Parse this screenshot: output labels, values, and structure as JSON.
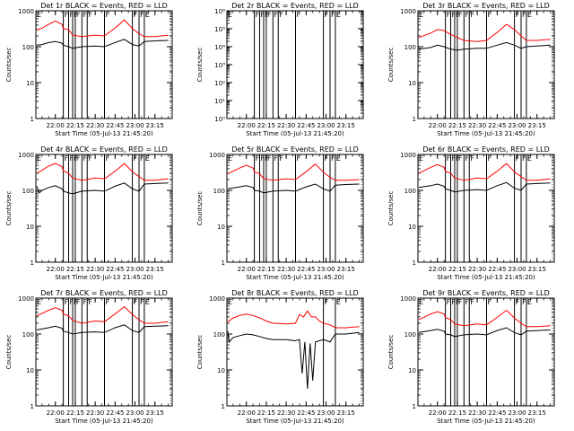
{
  "figure": {
    "xtick_labels": [
      "22:00",
      "22:15",
      "22:30",
      "22:45",
      "23:00",
      "23:15"
    ],
    "ylabel": "Counts/sec",
    "colors": {
      "events": "#000000",
      "lld": "#ff0000",
      "flag": "#000000"
    },
    "flag_letter": "F",
    "end_letter": "E"
  },
  "chart_data": [
    {
      "type": "line",
      "detector": "1r",
      "title": "Det 1r BLACK = Events, RED = LLD",
      "xlabel": "Start Time (05-Jul-13 21:45:20)",
      "ylabel": "Counts/sec",
      "ylog": true,
      "ylim": [
        1,
        1000
      ],
      "ytick_labels": [
        "1",
        "10",
        "100",
        "1000"
      ],
      "xrange": [
        "21:45:20",
        "23:28:00"
      ],
      "flags": [
        "22:06",
        "22:10",
        "22:13",
        "22:15",
        "22:20",
        "22:24",
        "22:37",
        "22:58",
        "23:03",
        "23:07"
      ],
      "end_marker": "23:07",
      "series": [
        {
          "key": "events",
          "x": [
            "21:46",
            "21:50",
            "21:55",
            "22:00",
            "22:05",
            "22:06",
            "22:10",
            "22:13",
            "22:20",
            "22:30",
            "22:37",
            "22:45",
            "22:52",
            "22:58",
            "23:03",
            "23:07",
            "23:15",
            "23:25"
          ],
          "values": [
            110,
            115,
            130,
            140,
            125,
            110,
            100,
            90,
            100,
            105,
            100,
            130,
            160,
            115,
            105,
            140,
            145,
            150
          ]
        },
        {
          "key": "lld",
          "x": [
            "21:46",
            "21:50",
            "21:55",
            "22:00",
            "22:05",
            "22:06",
            "22:10",
            "22:13",
            "22:20",
            "22:30",
            "22:37",
            "22:45",
            "22:52",
            "22:58",
            "23:03",
            "23:07",
            "23:15",
            "23:25"
          ],
          "values": [
            290,
            330,
            420,
            520,
            420,
            320,
            300,
            210,
            190,
            210,
            200,
            330,
            560,
            320,
            230,
            190,
            190,
            210
          ]
        }
      ]
    },
    {
      "type": "line",
      "detector": "2r",
      "title": "Det 2r BLACK = Events, RED = LLD",
      "xlabel": "Start Time (05-Jul-13 21:45:20)",
      "ylabel": "Counts/sec",
      "ylog": true,
      "ylim": [
        1,
        1000000
      ],
      "ytick_labels": [
        "10⁰",
        "10¹",
        "10²",
        "10³",
        "10⁴",
        "10⁵",
        "10⁶"
      ],
      "xrange": [
        "21:45:20",
        "23:28:00"
      ],
      "flags": [
        "22:06",
        "22:10",
        "22:13",
        "22:15",
        "22:20",
        "22:24",
        "22:37",
        "22:58",
        "23:03",
        "23:07"
      ],
      "end_marker": "23:07",
      "series": []
    },
    {
      "type": "line",
      "detector": "3r",
      "title": "Det 3r BLACK = Events, RED = LLD",
      "xlabel": "Start Time (05-Jul-13 21:45:20)",
      "ylabel": "Counts/sec",
      "ylog": true,
      "ylim": [
        1,
        1000
      ],
      "ytick_labels": [
        "1",
        "10",
        "100",
        "1000"
      ],
      "xrange": [
        "21:45:20",
        "23:28:00"
      ],
      "flags": [
        "22:06",
        "22:10",
        "22:13",
        "22:15",
        "22:20",
        "22:24",
        "22:37",
        "22:58",
        "23:03",
        "23:07"
      ],
      "end_marker": "23:07",
      "series": [
        {
          "key": "events",
          "x": [
            "21:46",
            "21:55",
            "22:00",
            "22:05",
            "22:10",
            "22:15",
            "22:20",
            "22:30",
            "22:37",
            "22:45",
            "22:52",
            "22:58",
            "23:03",
            "23:07",
            "23:15",
            "23:25"
          ],
          "values": [
            85,
            95,
            110,
            100,
            85,
            80,
            85,
            90,
            90,
            110,
            130,
            110,
            90,
            100,
            105,
            110
          ]
        },
        {
          "key": "lld",
          "x": [
            "21:46",
            "21:55",
            "22:00",
            "22:05",
            "22:10",
            "22:15",
            "22:20",
            "22:30",
            "22:37",
            "22:45",
            "22:52",
            "22:58",
            "23:03",
            "23:07",
            "23:15",
            "23:25"
          ],
          "values": [
            180,
            240,
            300,
            280,
            220,
            180,
            150,
            140,
            150,
            250,
            420,
            300,
            200,
            150,
            150,
            160
          ]
        }
      ]
    },
    {
      "type": "line",
      "detector": "4r",
      "title": "Det 4r BLACK = Events, RED = LLD",
      "xlabel": "Start Time (05-Jul-13 21:45:20)",
      "ylabel": "Counts/sec",
      "ylog": true,
      "ylim": [
        1,
        1000
      ],
      "ytick_labels": [
        "1",
        "10",
        "100",
        "1000"
      ],
      "xrange": [
        "21:45:20",
        "23:28:00"
      ],
      "flags": [
        "22:06",
        "22:10",
        "22:13",
        "22:15",
        "22:20",
        "22:24",
        "22:37",
        "22:58",
        "23:03",
        "23:07"
      ],
      "end_marker": "23:07",
      "series": [
        {
          "key": "events",
          "x": [
            "21:46",
            "21:48",
            "21:50",
            "21:55",
            "22:00",
            "22:05",
            "22:06",
            "22:10",
            "22:13",
            "22:20",
            "22:30",
            "22:37",
            "22:45",
            "22:52",
            "22:58",
            "23:03",
            "23:07",
            "23:15",
            "23:25"
          ],
          "values": [
            130,
            85,
            100,
            120,
            135,
            110,
            95,
            85,
            80,
            95,
            100,
            95,
            130,
            160,
            110,
            95,
            150,
            155,
            160
          ]
        },
        {
          "key": "lld",
          "x": [
            "21:46",
            "21:50",
            "21:55",
            "22:00",
            "22:05",
            "22:06",
            "22:10",
            "22:13",
            "22:20",
            "22:30",
            "22:37",
            "22:45",
            "22:52",
            "22:58",
            "23:03",
            "23:07",
            "23:15",
            "23:25"
          ],
          "values": [
            300,
            360,
            480,
            560,
            460,
            350,
            300,
            220,
            190,
            220,
            210,
            340,
            560,
            330,
            240,
            190,
            190,
            210
          ]
        }
      ]
    },
    {
      "type": "line",
      "detector": "5r",
      "title": "Det 5r BLACK = Events, RED = LLD",
      "xlabel": "Start Time (05-Jul-13 21:45:20)",
      "ylabel": "Counts/sec",
      "ylog": true,
      "ylim": [
        1,
        1000
      ],
      "ytick_labels": [
        "1",
        "10",
        "100",
        "1000"
      ],
      "xrange": [
        "21:45:20",
        "23:28:00"
      ],
      "flags": [
        "22:06",
        "22:10",
        "22:13",
        "22:15",
        "22:20",
        "22:24",
        "22:37",
        "22:58",
        "23:03",
        "23:07"
      ],
      "end_marker": "23:07",
      "series": [
        {
          "key": "events",
          "x": [
            "21:46",
            "21:55",
            "22:00",
            "22:05",
            "22:06",
            "22:10",
            "22:13",
            "22:20",
            "22:30",
            "22:37",
            "22:45",
            "22:52",
            "22:58",
            "23:03",
            "23:07",
            "23:15",
            "23:25"
          ],
          "values": [
            110,
            125,
            135,
            120,
            100,
            95,
            85,
            95,
            100,
            95,
            125,
            150,
            110,
            95,
            140,
            145,
            150
          ]
        },
        {
          "key": "lld",
          "x": [
            "21:46",
            "21:55",
            "22:00",
            "22:05",
            "22:06",
            "22:10",
            "22:13",
            "22:20",
            "22:30",
            "22:37",
            "22:45",
            "22:52",
            "22:58",
            "23:03",
            "23:07",
            "23:15",
            "23:25"
          ],
          "values": [
            290,
            420,
            500,
            420,
            330,
            290,
            210,
            190,
            210,
            200,
            330,
            540,
            320,
            230,
            190,
            190,
            200
          ]
        }
      ]
    },
    {
      "type": "line",
      "detector": "6r",
      "title": "Det 6r BLACK = Events, RED = LLD",
      "xlabel": "Start Time (05-Jul-13 21:45:20)",
      "ylabel": "Counts/sec",
      "ylog": true,
      "ylim": [
        1,
        1000
      ],
      "ytick_labels": [
        "1",
        "10",
        "100",
        "1000"
      ],
      "xrange": [
        "21:45:20",
        "23:28:00"
      ],
      "flags": [
        "22:06",
        "22:10",
        "22:13",
        "22:15",
        "22:20",
        "22:24",
        "22:37",
        "22:58",
        "23:03",
        "23:07"
      ],
      "end_marker": "23:07",
      "series": [
        {
          "key": "events",
          "x": [
            "21:46",
            "21:55",
            "22:00",
            "22:05",
            "22:06",
            "22:10",
            "22:13",
            "22:20",
            "22:30",
            "22:37",
            "22:45",
            "22:52",
            "22:58",
            "23:03",
            "23:07",
            "23:15",
            "23:25"
          ],
          "values": [
            120,
            135,
            150,
            130,
            110,
            100,
            90,
            100,
            105,
            100,
            135,
            165,
            115,
            100,
            150,
            155,
            160
          ]
        },
        {
          "key": "lld",
          "x": [
            "21:46",
            "21:55",
            "22:00",
            "22:05",
            "22:06",
            "22:10",
            "22:13",
            "22:20",
            "22:30",
            "22:37",
            "22:45",
            "22:52",
            "22:58",
            "23:03",
            "23:07",
            "23:15",
            "23:25"
          ],
          "values": [
            300,
            440,
            520,
            440,
            340,
            300,
            220,
            190,
            220,
            210,
            340,
            560,
            330,
            240,
            190,
            190,
            210
          ]
        }
      ]
    },
    {
      "type": "line",
      "detector": "7r",
      "title": "Det 7r BLACK = Events, RED = LLD",
      "xlabel": "Start Time (05-Jul-13 21:45:20)",
      "ylabel": "Counts/sec",
      "ylog": true,
      "ylim": [
        1,
        1000
      ],
      "ytick_labels": [
        "1",
        "10",
        "100",
        "1000"
      ],
      "xrange": [
        "21:45:20",
        "23:28:00"
      ],
      "flags": [
        "22:06",
        "22:10",
        "22:13",
        "22:15",
        "22:20",
        "22:24",
        "22:37",
        "22:58",
        "23:03",
        "23:07"
      ],
      "end_marker": "23:07",
      "series": [
        {
          "key": "events",
          "x": [
            "21:46",
            "21:55",
            "22:00",
            "22:05",
            "22:06",
            "22:10",
            "22:13",
            "22:20",
            "22:30",
            "22:37",
            "22:45",
            "22:52",
            "22:58",
            "23:03",
            "23:07",
            "23:15",
            "23:25"
          ],
          "values": [
            130,
            150,
            165,
            145,
            120,
            110,
            100,
            110,
            115,
            110,
            150,
            180,
            125,
            110,
            160,
            165,
            170
          ]
        },
        {
          "key": "lld",
          "x": [
            "21:46",
            "21:55",
            "22:00",
            "22:05",
            "22:06",
            "22:10",
            "22:13",
            "22:20",
            "22:30",
            "22:37",
            "22:45",
            "22:52",
            "22:58",
            "23:03",
            "23:07",
            "23:15",
            "23:25"
          ],
          "values": [
            320,
            460,
            540,
            460,
            360,
            320,
            240,
            200,
            230,
            220,
            360,
            580,
            350,
            250,
            200,
            200,
            220
          ]
        }
      ]
    },
    {
      "type": "line",
      "detector": "8r",
      "title": "Det 8r BLACK = Events, RED = LLD",
      "xlabel": "Start Time (05-Jul-13 21:45:20)",
      "ylabel": "Counts/sec",
      "ylog": true,
      "ylim": [
        1,
        1000
      ],
      "ytick_labels": [
        "1",
        "10",
        "100",
        "1000"
      ],
      "xrange": [
        "21:45:20",
        "23:28:00"
      ],
      "flags": [
        "22:58",
        "23:07"
      ],
      "end_marker": "23:07",
      "series": [
        {
          "key": "events",
          "x": [
            "21:46",
            "21:47",
            "21:50",
            "21:55",
            "22:00",
            "22:05",
            "22:10",
            "22:15",
            "22:20",
            "22:30",
            "22:37",
            "22:40",
            "22:42",
            "22:44",
            "22:46",
            "22:48",
            "22:50",
            "22:52",
            "22:55",
            "22:58",
            "23:03",
            "23:07",
            "23:15",
            "23:25"
          ],
          "values": [
            120,
            60,
            80,
            90,
            100,
            95,
            85,
            75,
            70,
            70,
            65,
            70,
            8,
            60,
            3,
            55,
            5,
            60,
            65,
            70,
            60,
            100,
            100,
            110
          ]
        },
        {
          "key": "lld",
          "x": [
            "21:46",
            "21:50",
            "21:55",
            "22:00",
            "22:05",
            "22:10",
            "22:15",
            "22:20",
            "22:30",
            "22:37",
            "22:40",
            "22:43",
            "22:46",
            "22:49",
            "22:52",
            "22:55",
            "22:58",
            "23:03",
            "23:07",
            "23:15",
            "23:25"
          ],
          "values": [
            220,
            280,
            330,
            360,
            330,
            280,
            230,
            200,
            190,
            200,
            350,
            300,
            440,
            300,
            300,
            230,
            200,
            180,
            150,
            150,
            160
          ]
        }
      ]
    },
    {
      "type": "line",
      "detector": "9r",
      "title": "Det 9r BLACK = Events, RED = LLD",
      "xlabel": "Start Time (05-Jul-13 21:45:20)",
      "ylabel": "Counts/sec",
      "ylog": true,
      "ylim": [
        1,
        1000
      ],
      "ytick_labels": [
        "1",
        "10",
        "100",
        "1000"
      ],
      "xrange": [
        "21:45:20",
        "23:28:00"
      ],
      "flags": [
        "22:06",
        "22:10",
        "22:13",
        "22:15",
        "22:20",
        "22:24",
        "22:37",
        "22:58",
        "23:03",
        "23:07"
      ],
      "end_marker": "23:07",
      "series": [
        {
          "key": "events",
          "x": [
            "21:46",
            "21:55",
            "22:00",
            "22:05",
            "22:06",
            "22:10",
            "22:13",
            "22:20",
            "22:30",
            "22:37",
            "22:45",
            "22:52",
            "22:58",
            "23:03",
            "23:07",
            "23:15",
            "23:25"
          ],
          "values": [
            110,
            125,
            135,
            120,
            100,
            95,
            85,
            95,
            100,
            95,
            125,
            150,
            110,
            95,
            120,
            125,
            130
          ]
        },
        {
          "key": "lld",
          "x": [
            "21:46",
            "21:55",
            "22:00",
            "22:05",
            "22:06",
            "22:10",
            "22:13",
            "22:20",
            "22:30",
            "22:37",
            "22:45",
            "22:52",
            "22:58",
            "23:03",
            "23:07",
            "23:15",
            "23:25"
          ],
          "values": [
            250,
            360,
            420,
            360,
            290,
            250,
            190,
            170,
            190,
            180,
            290,
            460,
            280,
            200,
            160,
            160,
            170
          ]
        }
      ]
    }
  ]
}
